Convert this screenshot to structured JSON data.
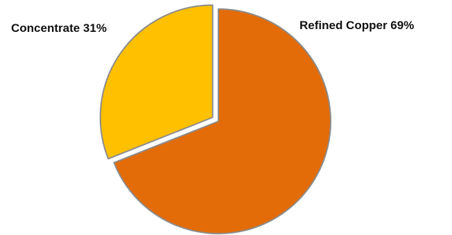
{
  "chart_data": {
    "type": "pie",
    "title": "",
    "start_angle_deg": 0,
    "direction": "clockwise",
    "slices": [
      {
        "label": "Refined Copper",
        "value": 69,
        "display": "Refined Copper 69%",
        "color": "#e36c09",
        "exploded": false
      },
      {
        "label": "Concentrate",
        "value": 31,
        "display": "Concentrate 31%",
        "color": "#ffc000",
        "exploded": true
      }
    ],
    "legend": "none",
    "border_color": "#8c8c8c"
  }
}
